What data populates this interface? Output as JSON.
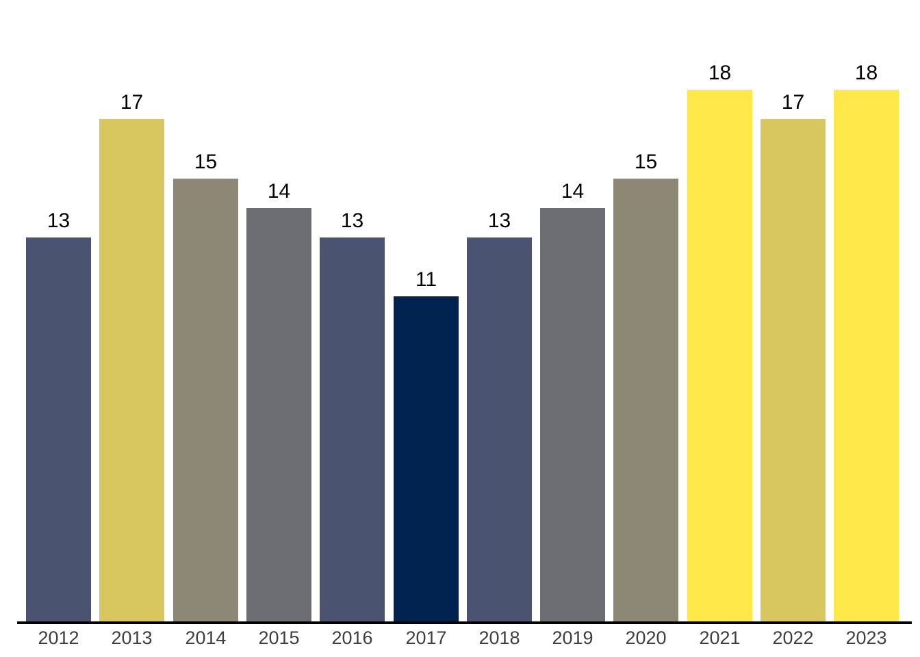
{
  "chart_data": {
    "type": "bar",
    "title": "",
    "xlabel": "",
    "ylabel": "",
    "categories": [
      "2012",
      "2013",
      "2014",
      "2015",
      "2016",
      "2017",
      "2018",
      "2019",
      "2020",
      "2021",
      "2022",
      "2023"
    ],
    "values": [
      13,
      17,
      15,
      14,
      13,
      11,
      13,
      14,
      15,
      18,
      17,
      18
    ],
    "value_labels": [
      "13",
      "17",
      "15",
      "14",
      "13",
      "11",
      "13",
      "14",
      "15",
      "18",
      "17",
      "18"
    ],
    "bar_colors": [
      "#4A5470",
      "#D8C75F",
      "#8D8875",
      "#6C6E74",
      "#4A5470",
      "#00234F",
      "#4A5470",
      "#6C6E74",
      "#8D8875",
      "#FFE84A",
      "#D8C75F",
      "#FFE84A"
    ],
    "ylim": [
      0,
      20
    ],
    "grid": false,
    "legend": "none",
    "y_axis_shown": false,
    "x_axis_line_shown": true,
    "value_labels_position": "above-bars",
    "colors": {
      "value_label_color": "#000000",
      "tick_label_color": "#3E3E3E",
      "axis_line_color": "#000000",
      "background": "#FFFFFF"
    }
  }
}
